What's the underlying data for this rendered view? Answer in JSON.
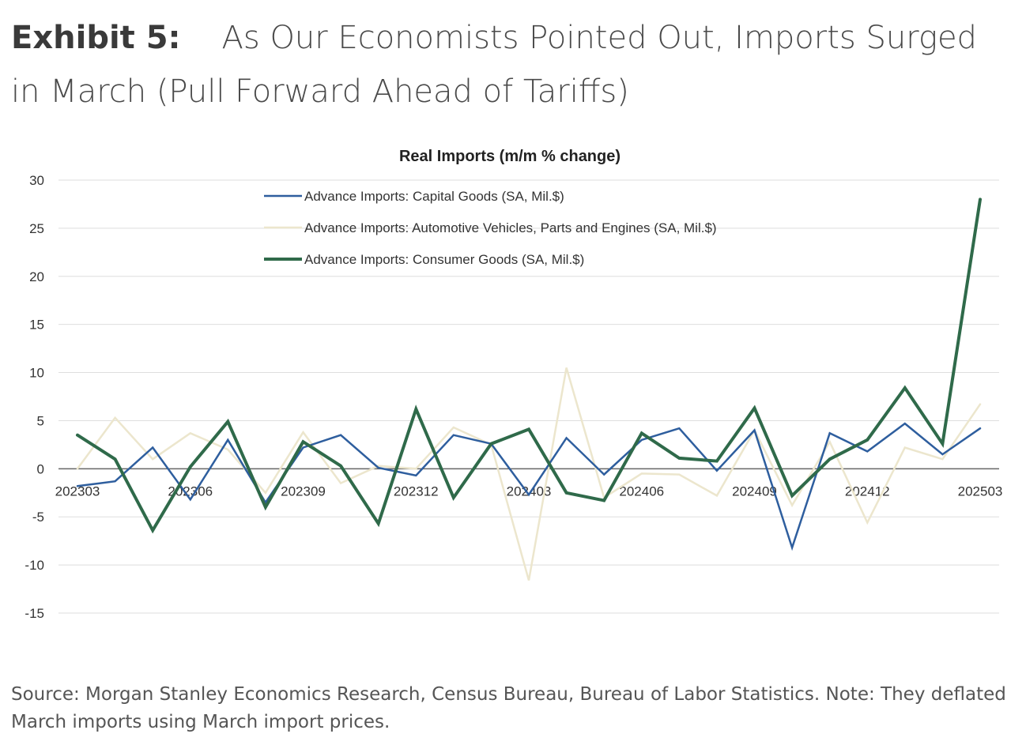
{
  "exhibit": {
    "label": "Exhibit 5:",
    "title": "As Our Economists Pointed Out, Imports Surged in March (Pull Forward Ahead of Tariffs)"
  },
  "source": "Source: Morgan Stanley Economics Research, Census Bureau, Bureau of Labor Statistics. Note: They deflated March imports using March import prices.",
  "chart_data": {
    "type": "line",
    "title": "Real Imports (m/m % change)",
    "xlabel": "",
    "ylabel": "",
    "ylim": [
      -15,
      30
    ],
    "yticks": [
      30,
      25,
      20,
      15,
      10,
      5,
      0,
      -5,
      -10,
      -15
    ],
    "x": [
      "202303",
      "202304",
      "202305",
      "202306",
      "202307",
      "202308",
      "202309",
      "202310",
      "202311",
      "202312",
      "202401",
      "202402",
      "202403",
      "202404",
      "202405",
      "202406",
      "202407",
      "202408",
      "202409",
      "202410",
      "202411",
      "202412",
      "202501",
      "202502",
      "202503"
    ],
    "xtick_labels": [
      "202303",
      "202306",
      "202309",
      "202312",
      "202403",
      "202406",
      "202409",
      "202412",
      "202503"
    ],
    "grid": "horizontal",
    "legend_position": "top",
    "series": [
      {
        "name": "Advance Imports: Capital Goods (SA, Mil.$)",
        "color": "#2e5e9e",
        "width": 2.5,
        "values": [
          -1.8,
          -1.3,
          2.2,
          -3.2,
          3.0,
          -3.5,
          2.2,
          3.5,
          0.1,
          -0.7,
          3.5,
          2.6,
          -2.7,
          3.2,
          -0.6,
          3.0,
          4.2,
          -0.2,
          4.0,
          -8.2,
          3.7,
          1.8,
          4.7,
          1.5,
          4.2
        ]
      },
      {
        "name": "Advance Imports: Automotive Vehicles, Parts and Engines (SA, Mil.$)",
        "color": "#ece6cd",
        "width": 2.5,
        "values": [
          0.0,
          5.3,
          1.0,
          3.7,
          2.0,
          -2.5,
          3.8,
          -1.5,
          0.3,
          0.0,
          4.3,
          2.5,
          -11.6,
          10.5,
          -3.0,
          -0.5,
          -0.6,
          -2.8,
          4.0,
          -3.8,
          2.8,
          -5.6,
          2.2,
          1.0,
          6.7
        ]
      },
      {
        "name": "Advance Imports: Consumer Goods (SA, Mil.$)",
        "color": "#2f6a4a",
        "width": 4,
        "values": [
          3.5,
          1.0,
          -6.4,
          0.2,
          4.9,
          -4.0,
          2.8,
          0.3,
          -5.7,
          6.2,
          -3.0,
          2.6,
          4.1,
          -2.5,
          -3.3,
          3.7,
          1.1,
          0.8,
          6.3,
          -2.8,
          1.0,
          3.0,
          8.4,
          2.6,
          28.0
        ]
      }
    ]
  }
}
